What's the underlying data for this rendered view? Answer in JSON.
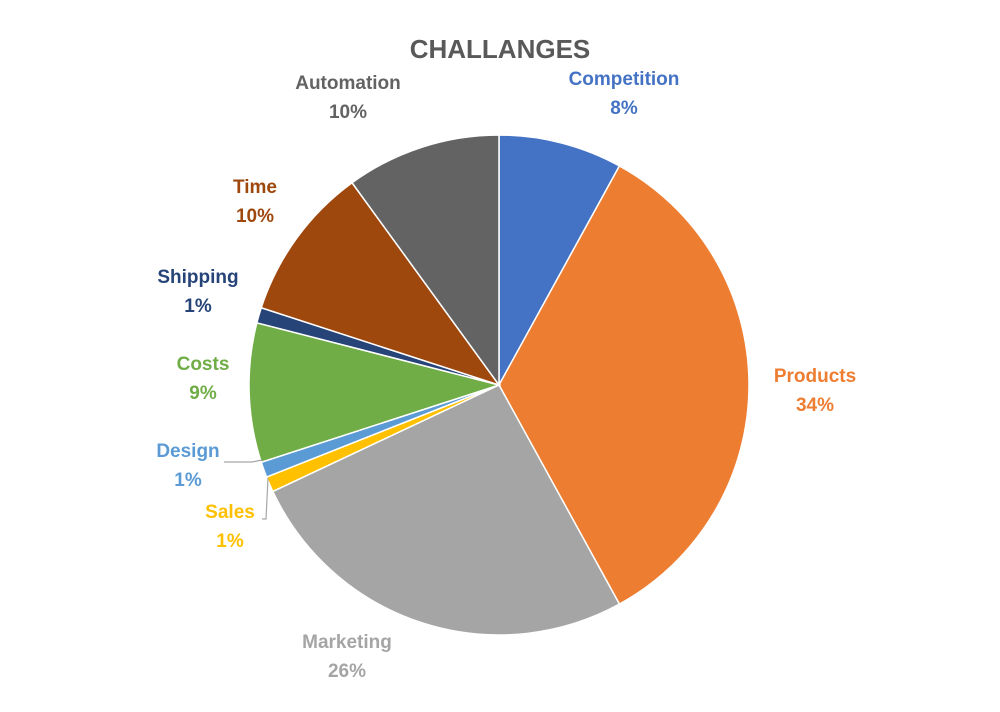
{
  "chart_data": {
    "type": "pie",
    "title": "CHALLANGES",
    "slices": [
      {
        "label": "Competition",
        "value": 8,
        "value_label": "8%",
        "color": "#4472C4"
      },
      {
        "label": "Products",
        "value": 34,
        "value_label": "34%",
        "color": "#ED7D31"
      },
      {
        "label": "Marketing",
        "value": 26,
        "value_label": "26%",
        "color": "#A5A5A5"
      },
      {
        "label": "Sales",
        "value": 1,
        "value_label": "1%",
        "color": "#FFC000"
      },
      {
        "label": "Design",
        "value": 1,
        "value_label": "1%",
        "color": "#5B9BD5"
      },
      {
        "label": "Costs",
        "value": 9,
        "value_label": "9%",
        "color": "#70AD47"
      },
      {
        "label": "Shipping",
        "value": 1,
        "value_label": "1%",
        "color": "#264478"
      },
      {
        "label": "Time",
        "value": 10,
        "value_label": "10%",
        "color": "#9E480E"
      },
      {
        "label": "Automation",
        "value": 10,
        "value_label": "10%",
        "color": "#636363"
      }
    ],
    "start_angle_deg": 0,
    "direction": "clockwise",
    "legend": "none"
  }
}
